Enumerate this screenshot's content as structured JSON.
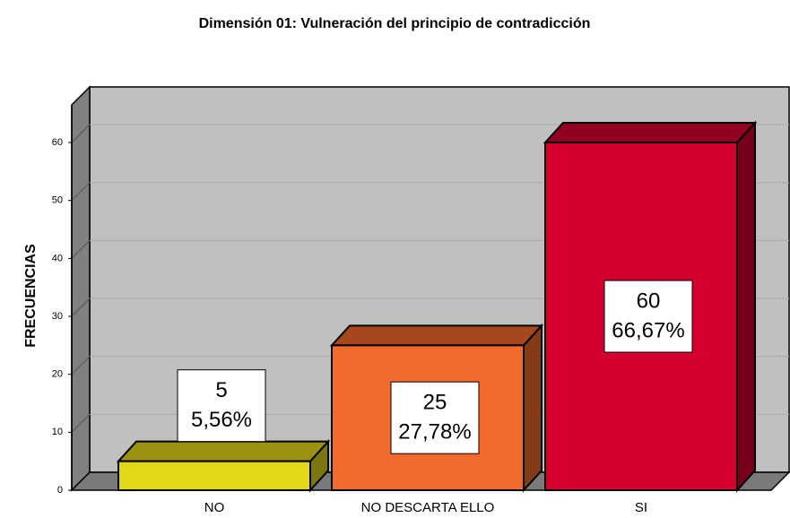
{
  "chart_data": {
    "type": "bar3d",
    "title": "Dimensión 01: Vulneración del principio de contradicción",
    "y_label": "FRECUENCIAS",
    "categories": [
      "NO",
      "NO DESCARTA ELLO",
      "SI"
    ],
    "values": [
      5,
      25,
      60
    ],
    "percent_labels": [
      "5,56%",
      "27,78%",
      "66,67%"
    ],
    "colors": [
      "#e2d718",
      "#f26a2c",
      "#d6002e"
    ],
    "ylim": [
      0,
      66.5
    ],
    "yticks": [
      0,
      10,
      20,
      30,
      40,
      50,
      60
    ],
    "grid": true
  }
}
